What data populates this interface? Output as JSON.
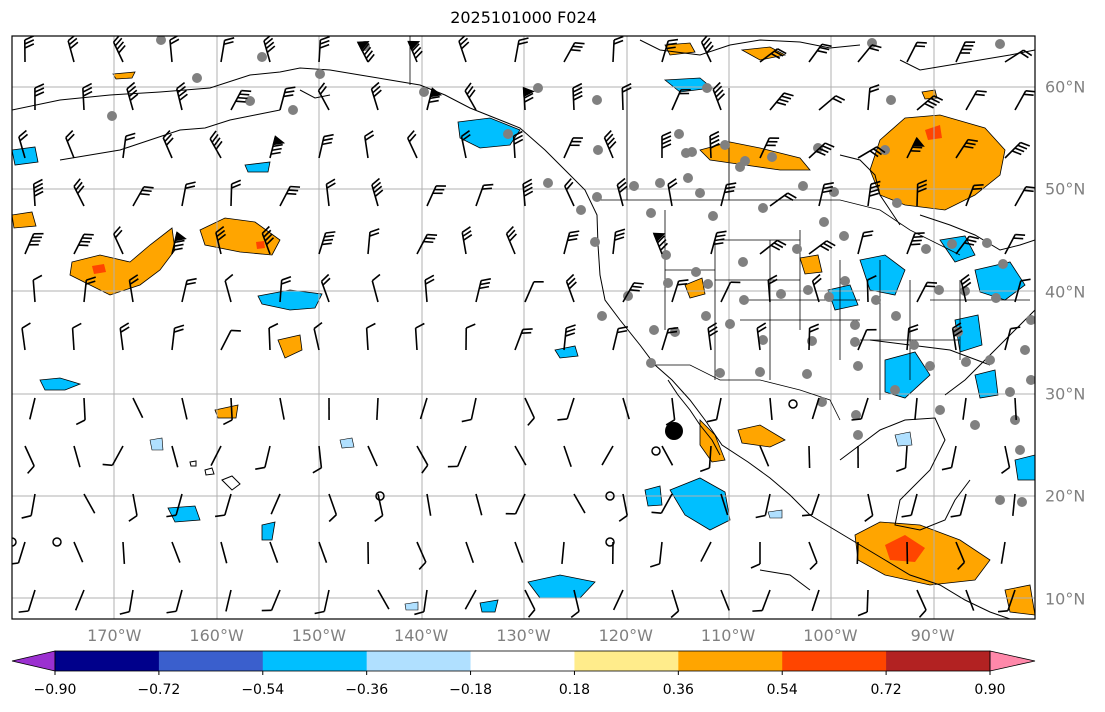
{
  "title": "2025101000 F024",
  "map": {
    "projection": "plate-carree",
    "lon_range": [
      -180,
      -80
    ],
    "lat_range": [
      8,
      65
    ],
    "field": "colour-filled anomaly with wind barbs",
    "longitude_labels": [
      {
        "lon": -170,
        "text": "170°W"
      },
      {
        "lon": -160,
        "text": "160°W"
      },
      {
        "lon": -150,
        "text": "150°W"
      },
      {
        "lon": -140,
        "text": "140°W"
      },
      {
        "lon": -130,
        "text": "130°W"
      },
      {
        "lon": -120,
        "text": "120°W"
      },
      {
        "lon": -110,
        "text": "110°W"
      },
      {
        "lon": -100,
        "text": "100°W"
      },
      {
        "lon": -90,
        "text": "90°W"
      }
    ],
    "latitude_labels": [
      {
        "lat": 60,
        "text": "60°N"
      },
      {
        "lat": 50,
        "text": "50°N"
      },
      {
        "lat": 40,
        "text": "40°N"
      },
      {
        "lat": 30,
        "text": "30°N"
      },
      {
        "lat": 20,
        "text": "20°N"
      },
      {
        "lat": 10,
        "text": "10°N"
      }
    ],
    "colors": {
      "land_outline": "#000000",
      "grid": "#b0b0b0",
      "station_dot": "#808080",
      "label": "#808080"
    }
  },
  "colorbar": {
    "bounds": [
      -1.08,
      -0.9,
      -0.72,
      -0.54,
      -0.36,
      -0.18,
      0.18,
      0.36,
      0.54,
      0.72,
      0.9,
      1.08
    ],
    "colors": [
      "#9b30d0",
      "#00008b",
      "#3a5fcd",
      "#00bfff",
      "#b0e0ff",
      "#ffffff",
      "#ffec8b",
      "#ffa500",
      "#ff4500",
      "#b22222",
      "#ff88aa"
    ],
    "extend": "both",
    "tick_labels": [
      {
        "value": -0.9,
        "text": "−0.90"
      },
      {
        "value": -0.72,
        "text": "−0.72"
      },
      {
        "value": -0.54,
        "text": "−0.54"
      },
      {
        "value": -0.36,
        "text": "−0.36"
      },
      {
        "value": -0.18,
        "text": "−0.18"
      },
      {
        "value": 0.18,
        "text": "0.18"
      },
      {
        "value": 0.36,
        "text": "0.36"
      },
      {
        "value": 0.54,
        "text": "0.54"
      },
      {
        "value": 0.72,
        "text": "0.72"
      },
      {
        "value": 0.9,
        "text": "0.90"
      }
    ]
  }
}
